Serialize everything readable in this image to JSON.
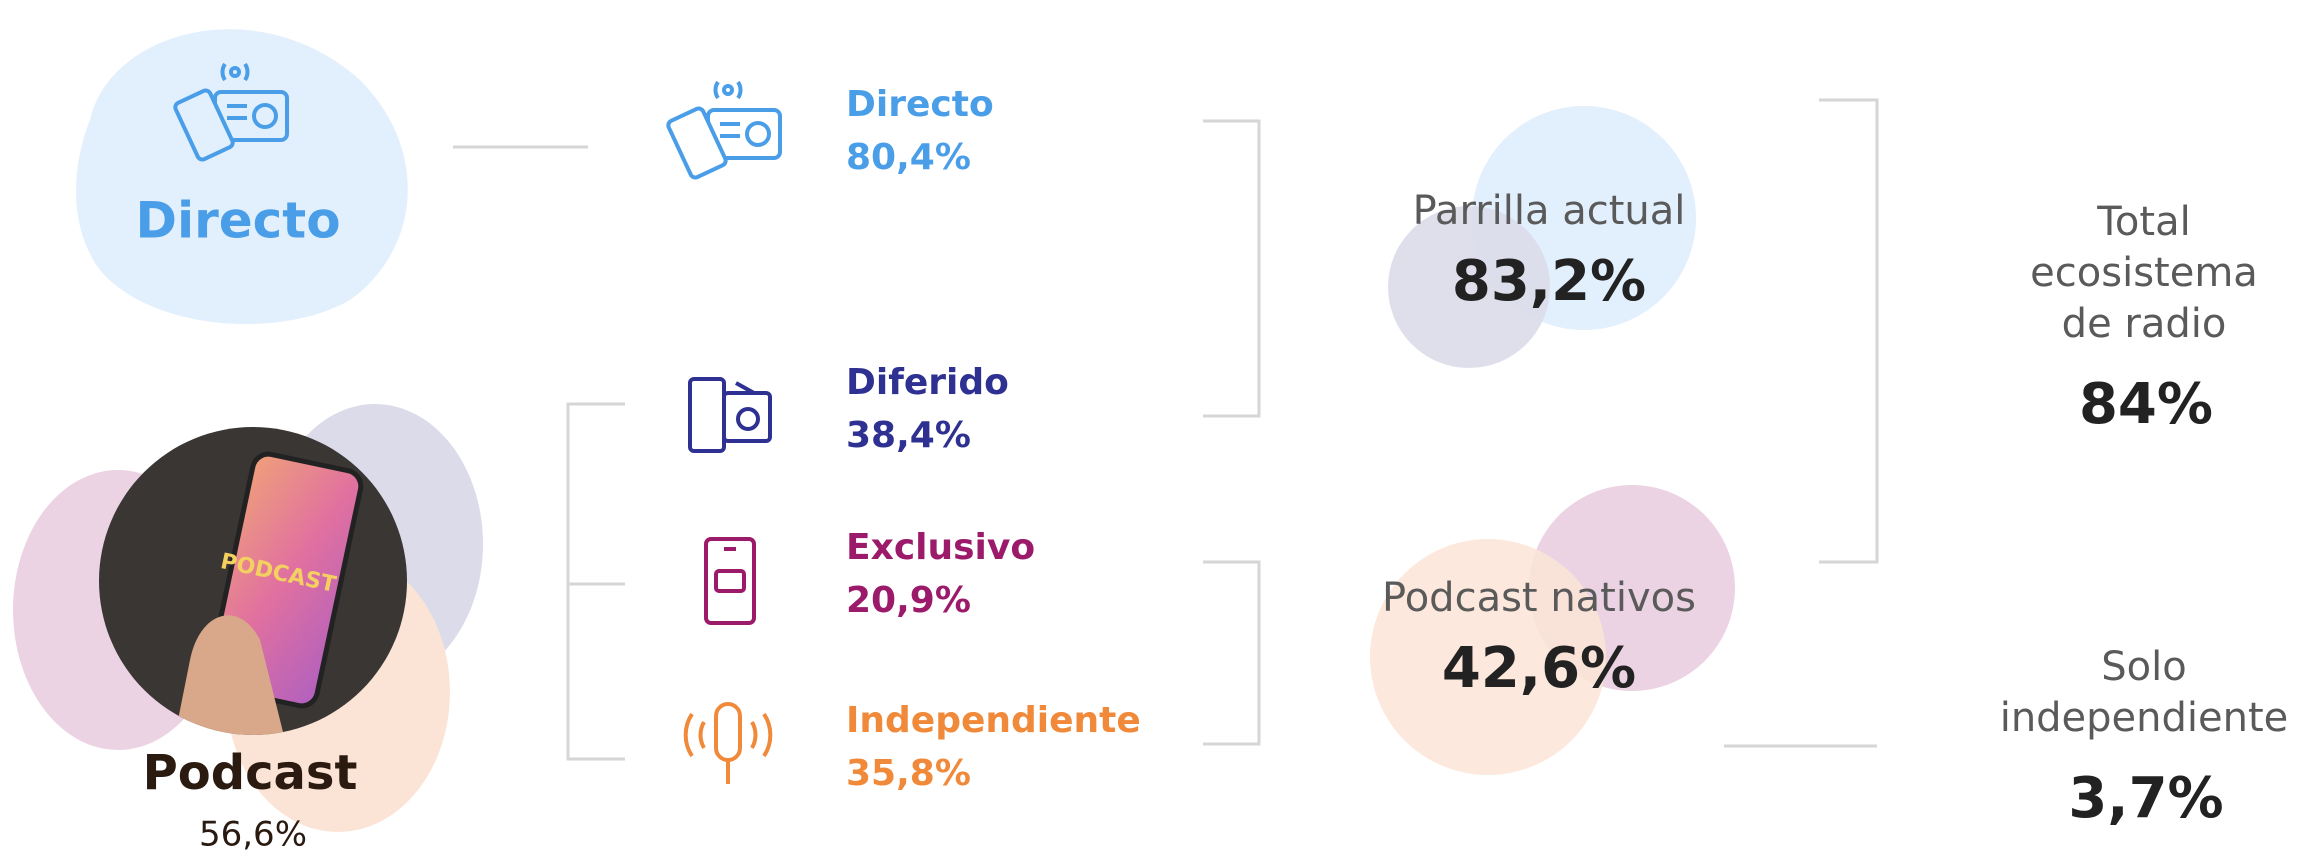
{
  "sources": {
    "directo": "Directo",
    "podcast": {
      "label": "Podcast",
      "value": "56,6%",
      "photo_text": "PODCAST"
    }
  },
  "items": [
    {
      "label": "Directo",
      "value": "80,4%"
    },
    {
      "label": "Diferido",
      "value": "38,4%"
    },
    {
      "label": "Exclusivo",
      "value": "20,9%"
    },
    {
      "label": "Independiente",
      "value": "35,8%"
    }
  ],
  "groups": [
    {
      "label": "Parrilla actual",
      "value": "83,2%"
    },
    {
      "label": "Podcast nativos",
      "value": "42,6%"
    }
  ],
  "totals": [
    {
      "lines": [
        "Total",
        "ecosistema",
        "de radio"
      ],
      "value": "84%"
    },
    {
      "lines": [
        "Solo",
        "independiente"
      ],
      "value": "3,7%"
    }
  ]
}
